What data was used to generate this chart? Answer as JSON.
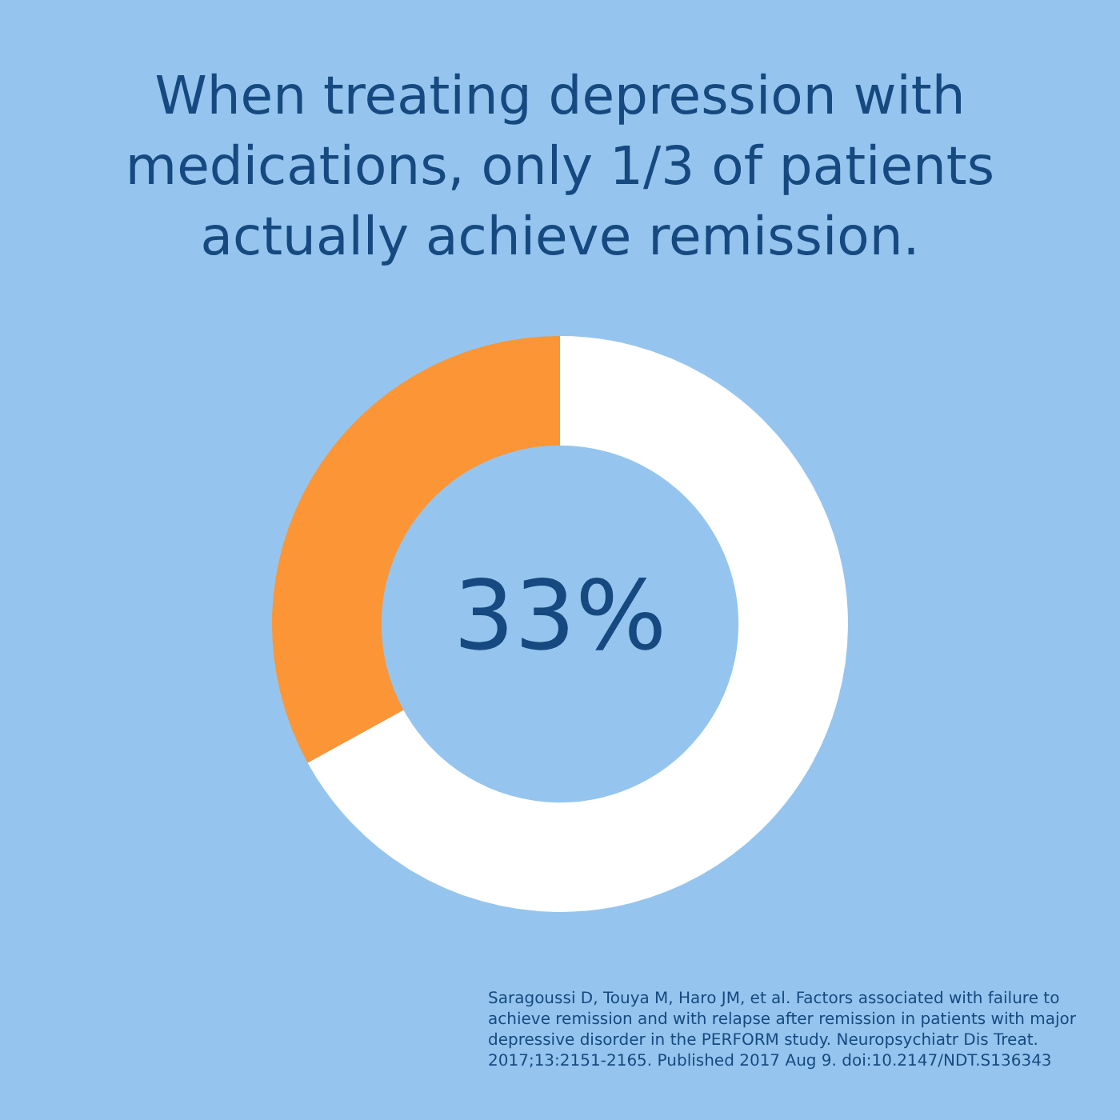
{
  "chart_data": {
    "type": "donut",
    "title": "When treating depression with medications, only 1/3 of patients actually achieve remission.",
    "categories": [
      null,
      null
    ],
    "values": [
      67,
      33
    ],
    "colors": [
      "#ffffff",
      "#fb9535"
    ],
    "value_labels": [
      null,
      "33%"
    ],
    "legend": false,
    "annotations": [
      "Saragoussi D, Touya M, Haro JM, et al. Factors associated with failure to achieve remission and with relapse after remission in patients with major depressive disorder in the PERFORM study. Neuropsychiatr Dis Treat. 2017;13:2151-2165. Published 2017 Aug 9. doi:10.2147/NDT.S136343"
    ]
  }
}
